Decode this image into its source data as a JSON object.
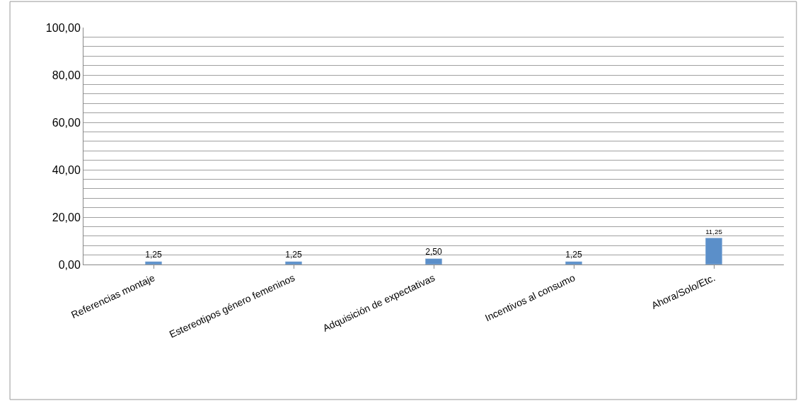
{
  "chart_data": {
    "type": "bar",
    "categories": [
      "Referencias montaje",
      "Estereotipos género femeninos",
      "Adquisición de expectativas",
      "Incentivos al consumo",
      "Ahora/Solo/Etc."
    ],
    "values": [
      1.25,
      1.25,
      2.5,
      1.25,
      11.25
    ],
    "value_labels": [
      "1,25",
      "1,25",
      "2,50",
      "1,25",
      "11,25"
    ],
    "color": "#5b8fc9",
    "ylim": [
      0,
      100
    ],
    "yticks": [
      {
        "value": 0,
        "label": "0,00"
      },
      {
        "value": 4,
        "label": null
      },
      {
        "value": 8,
        "label": null
      },
      {
        "value": 12,
        "label": null
      },
      {
        "value": 16,
        "label": null
      },
      {
        "value": 20,
        "label": "20,00"
      },
      {
        "value": 24,
        "label": null
      },
      {
        "value": 28,
        "label": null
      },
      {
        "value": 32,
        "label": null
      },
      {
        "value": 36,
        "label": null
      },
      {
        "value": 40,
        "label": "40,00"
      },
      {
        "value": 44,
        "label": null
      },
      {
        "value": 48,
        "label": null
      },
      {
        "value": 52,
        "label": null
      },
      {
        "value": 56,
        "label": null
      },
      {
        "value": 60,
        "label": "60,00"
      },
      {
        "value": 64,
        "label": null
      },
      {
        "value": 68,
        "label": null
      },
      {
        "value": 72,
        "label": null
      },
      {
        "value": 76,
        "label": null
      },
      {
        "value": 80,
        "label": "80,00"
      },
      {
        "value": 84,
        "label": null
      },
      {
        "value": 88,
        "label": null
      },
      {
        "value": 92,
        "label": null
      },
      {
        "value": 96,
        "label": null
      },
      {
        "value": 100,
        "label": "100,00"
      }
    ],
    "grid": "y"
  }
}
